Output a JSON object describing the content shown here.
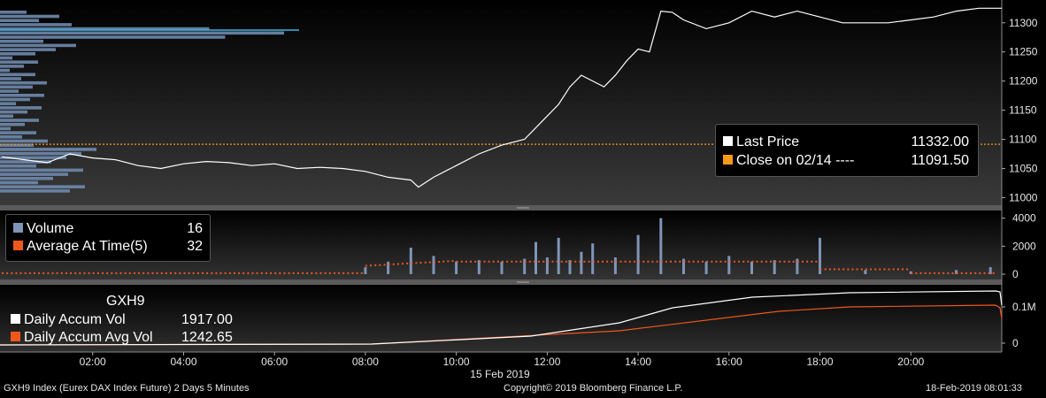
{
  "chart_data": [
    {
      "type": "line",
      "series": [
        {
          "name": "Last Price",
          "display_value": "11332.00",
          "color": "#ffffff",
          "x": [
            "00:00",
            "00:30",
            "01:00",
            "01:30",
            "02:00",
            "02:30",
            "03:00",
            "03:30",
            "04:00",
            "04:30",
            "05:00",
            "05:30",
            "06:00",
            "06:30",
            "07:00",
            "07:30",
            "08:00",
            "08:30",
            "09:00",
            "09:10",
            "09:30",
            "10:00",
            "10:30",
            "11:00",
            "11:30",
            "11:45",
            "12:00",
            "12:15",
            "12:30",
            "12:45",
            "13:00",
            "13:15",
            "13:30",
            "13:45",
            "14:00",
            "14:15",
            "14:30",
            "14:45",
            "15:00",
            "15:30",
            "16:00",
            "16:30",
            "17:00",
            "17:30",
            "18:00",
            "18:30",
            "19:00",
            "19:30",
            "20:00",
            "20:30",
            "21:00",
            "21:30",
            "22:00"
          ],
          "y": [
            11070,
            11065,
            11060,
            11075,
            11068,
            11065,
            11055,
            11050,
            11058,
            11062,
            11060,
            11055,
            11058,
            11050,
            11052,
            11050,
            11045,
            11035,
            11030,
            11018,
            11035,
            11055,
            11075,
            11090,
            11100,
            11120,
            11140,
            11160,
            11190,
            11210,
            11200,
            11190,
            11210,
            11235,
            11255,
            11250,
            11320,
            11318,
            11305,
            11290,
            11300,
            11320,
            11310,
            11320,
            11310,
            11300,
            11300,
            11300,
            11305,
            11310,
            11320,
            11325,
            11325
          ]
        },
        {
          "name": "Close on 02/14 ----",
          "display_value": "11091.50",
          "color": "#f59a1b",
          "constant": 11091.5
        }
      ],
      "yticks": [
        11000,
        11050,
        11100,
        11150,
        11200,
        11250,
        11300
      ],
      "ylim": [
        10990,
        11330
      ]
    },
    {
      "type": "bar",
      "series": [
        {
          "name": "Volume",
          "display_value": "16",
          "color": "#7e95b8",
          "x": [
            "08:00",
            "08:30",
            "09:00",
            "09:30",
            "10:00",
            "10:30",
            "11:00",
            "11:30",
            "11:45",
            "12:00",
            "12:15",
            "12:30",
            "12:45",
            "13:00",
            "13:30",
            "14:00",
            "14:30",
            "15:00",
            "15:30",
            "16:00",
            "16:30",
            "17:00",
            "17:30",
            "18:00",
            "19:00",
            "20:00",
            "21:00",
            "21:45"
          ],
          "y": [
            500,
            900,
            1900,
            1300,
            900,
            1000,
            900,
            1100,
            2300,
            1200,
            2600,
            1000,
            1600,
            2200,
            1200,
            2800,
            4000,
            1100,
            900,
            1300,
            900,
            1000,
            1100,
            2600,
            300,
            200,
            300,
            500
          ]
        },
        {
          "name": "Average At Time(5)",
          "display_value": "32",
          "color": "#f0571c"
        }
      ],
      "yticks": [
        0,
        2000,
        4000
      ],
      "ylim": [
        0,
        4300
      ]
    },
    {
      "type": "line",
      "title": "GXH9",
      "series": [
        {
          "name": "Daily Accum Vol",
          "display_value": "1917.00",
          "color": "#ffffff"
        },
        {
          "name": "Daily Accum Avg Vol",
          "display_value": "1242.65",
          "color": "#f0571c"
        }
      ],
      "yticks": [
        "0",
        "0.1M"
      ]
    }
  ],
  "xaxis": {
    "ticks": [
      "02:00",
      "04:00",
      "06:00",
      "08:00",
      "10:00",
      "12:00",
      "14:00",
      "16:00",
      "18:00",
      "20:00"
    ],
    "date_label": "15 Feb 2019"
  },
  "footer": {
    "left": "GXH9 Index (Eurex DAX Index Future) 2 Days 5 Minutes",
    "center": "Copyright© 2019 Bloomberg Finance L.P.",
    "right": "18-Feb-2019 08:01:33"
  }
}
